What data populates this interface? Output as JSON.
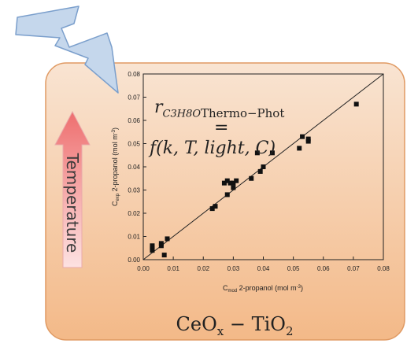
{
  "labels": {
    "temperature": "Temperature",
    "formula_rate_symbol": "r",
    "formula_rate_subscript": "C3H8O",
    "formula_rate_condition": "Thermo−Phot",
    "formula_equals": "=",
    "formula_function": "f(k, T, light, C)",
    "material_base": "CeO",
    "material_x": "x",
    "material_sep": " − TiO",
    "material_2": "2"
  },
  "colors": {
    "box_top": "#f9e4d2",
    "box_bottom": "#f3b988",
    "box_border": "#e09a63",
    "arrow_top": "#ee6f6f",
    "arrow_bottom": "#fde2e2",
    "lightning_fill": "#c5d7ec",
    "lightning_edge": "#7b9fcc",
    "marker": "#111111"
  },
  "icons": {
    "light": "lightning-bolt-icon",
    "temperature": "up-arrow-icon"
  },
  "chart_data": {
    "type": "scatter",
    "xlabel_main": "C",
    "xlabel_sub": "mod",
    "xlabel_rest": " 2-propanol (mol m",
    "xlabel_sup": "-3",
    "xlabel_end": ")",
    "ylabel_main": "C",
    "ylabel_sub": "exp",
    "ylabel_rest": " 2-propanol (mol m",
    "ylabel_sup": "-3",
    "ylabel_end": ")",
    "xlim": [
      0.0,
      0.08
    ],
    "ylim": [
      0.0,
      0.08
    ],
    "xticks": [
      "0.00",
      "0.01",
      "0.02",
      "0.03",
      "0.04",
      "0.05",
      "0.06",
      "0.07",
      "0.08"
    ],
    "yticks": [
      "0.00",
      "0.01",
      "0.02",
      "0.03",
      "0.04",
      "0.05",
      "0.06",
      "0.07",
      "0.08"
    ],
    "grid": false,
    "legend": "none",
    "parity_line": [
      [
        0.0,
        0.0
      ],
      [
        0.08,
        0.08
      ]
    ],
    "points": [
      {
        "x": 0.003,
        "y": 0.004
      },
      {
        "x": 0.003,
        "y": 0.005
      },
      {
        "x": 0.003,
        "y": 0.006
      },
      {
        "x": 0.006,
        "y": 0.006
      },
      {
        "x": 0.006,
        "y": 0.007
      },
      {
        "x": 0.007,
        "y": 0.002
      },
      {
        "x": 0.008,
        "y": 0.009
      },
      {
        "x": 0.023,
        "y": 0.022
      },
      {
        "x": 0.024,
        "y": 0.023
      },
      {
        "x": 0.027,
        "y": 0.033
      },
      {
        "x": 0.028,
        "y": 0.028
      },
      {
        "x": 0.028,
        "y": 0.034
      },
      {
        "x": 0.029,
        "y": 0.033
      },
      {
        "x": 0.03,
        "y": 0.033
      },
      {
        "x": 0.03,
        "y": 0.031
      },
      {
        "x": 0.031,
        "y": 0.034
      },
      {
        "x": 0.036,
        "y": 0.035
      },
      {
        "x": 0.038,
        "y": 0.046
      },
      {
        "x": 0.039,
        "y": 0.038
      },
      {
        "x": 0.04,
        "y": 0.04
      },
      {
        "x": 0.043,
        "y": 0.046
      },
      {
        "x": 0.052,
        "y": 0.048
      },
      {
        "x": 0.053,
        "y": 0.053
      },
      {
        "x": 0.055,
        "y": 0.051
      },
      {
        "x": 0.055,
        "y": 0.052
      },
      {
        "x": 0.071,
        "y": 0.067
      }
    ]
  }
}
